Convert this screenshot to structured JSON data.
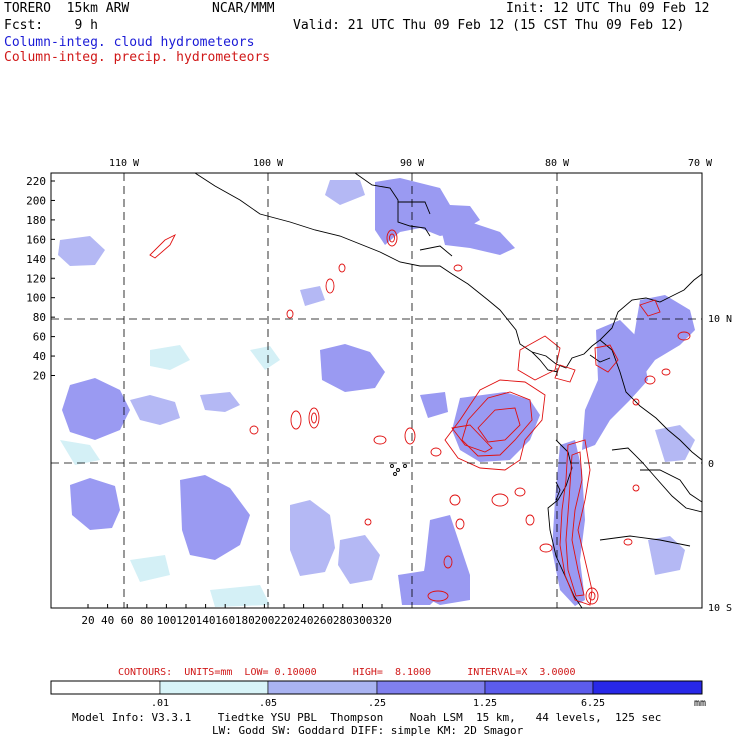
{
  "header": {
    "model": "TORERO  15km ARW",
    "org": "NCAR/MMM",
    "init": "Init: 12 UTC Thu 09 Feb 12",
    "fcst": "Fcst:    9 h",
    "valid": "Valid: 21 UTC Thu 09 Feb 12 (15 CST Thu 09 Feb 12)",
    "field1": "Column-integ. cloud hydrometeors",
    "field2": "Column-integ. precip. hydrometeors"
  },
  "map": {
    "lon_labels": [
      "110 W",
      "100 W",
      "90 W",
      "80 W",
      "70 W"
    ],
    "lat_labels": [
      "10 N",
      "0",
      "10 S"
    ],
    "y_ticks": [
      "220",
      "200",
      "180",
      "160",
      "140",
      "120",
      "100",
      "80",
      "60",
      "40",
      "20"
    ],
    "x_ticks": [
      "20",
      "40",
      "60",
      "80",
      "100",
      "120",
      "140",
      "160",
      "180",
      "200",
      "220",
      "240",
      "260",
      "280",
      "300",
      "320"
    ],
    "cloud_color": "#8c8cf0",
    "precip_color": "#e01010"
  },
  "contours_line": {
    "text": "CONTOURS:  UNITS=mm  LOW= 0.10000      HIGH=  8.1000      INTERVAL=X  3.0000"
  },
  "colorbar": {
    "labels": [
      ".01",
      ".05",
      ".25",
      "1.25",
      "6.25"
    ],
    "unit": "mm",
    "colors": [
      "#ffffff",
      "#d8f4f8",
      "#aab4f2",
      "#8080ee",
      "#5c5cec",
      "#2828e8"
    ]
  },
  "footer": {
    "line1": "Model Info: V3.3.1    Tiedtke YSU PBL  Thompson    Noah LSM  15 km,   44 levels,  125 sec",
    "line2": "LW: Godd SW: Goddard DIFF: simple KM: 2D Smagor"
  }
}
